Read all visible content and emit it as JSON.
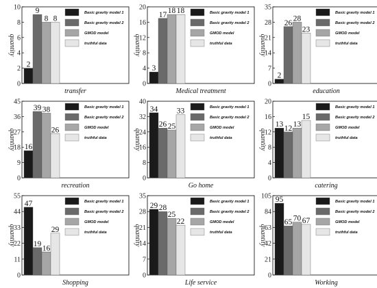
{
  "legend": [
    "Basic gravity model 1",
    "Basic gravity model 2",
    "GMOD model",
    "truthful data"
  ],
  "colors": [
    "#1a1a1a",
    "#6a6a6a",
    "#a6a6a6",
    "#e6e6e6"
  ],
  "chart_data": [
    {
      "type": "bar",
      "title": "transfer",
      "ylabel": "quantity",
      "ylim": [
        0,
        10
      ],
      "yticks": [
        0,
        2,
        4,
        6,
        8,
        10
      ],
      "values": [
        2,
        9,
        8,
        8
      ]
    },
    {
      "type": "bar",
      "title": "Medical treatment",
      "ylabel": "quantity",
      "ylim": [
        0,
        20
      ],
      "yticks": [
        0,
        4,
        8,
        12,
        16,
        20
      ],
      "values": [
        3,
        17,
        18,
        18
      ]
    },
    {
      "type": "bar",
      "title": "education",
      "ylabel": "quantity",
      "ylim": [
        0,
        35
      ],
      "yticks": [
        0,
        7,
        14,
        21,
        28,
        35
      ],
      "values": [
        2,
        26,
        28,
        23
      ]
    },
    {
      "type": "bar",
      "title": "recreation",
      "ylabel": "quantity",
      "ylim": [
        0,
        45
      ],
      "yticks": [
        0,
        9,
        18,
        27,
        36,
        45
      ],
      "values": [
        16,
        39,
        38,
        26
      ]
    },
    {
      "type": "bar",
      "title": "Go home",
      "ylabel": "quantity",
      "ylim": [
        0,
        40
      ],
      "yticks": [
        0,
        8,
        16,
        24,
        32,
        40
      ],
      "values": [
        34,
        26,
        25,
        33
      ]
    },
    {
      "type": "bar",
      "title": "catering",
      "ylabel": "quantity",
      "ylim": [
        0,
        20
      ],
      "yticks": [
        0,
        4,
        8,
        12,
        16,
        20
      ],
      "values": [
        13,
        12,
        13,
        15
      ]
    },
    {
      "type": "bar",
      "title": "Shopping",
      "ylabel": "quantity",
      "ylim": [
        0,
        55
      ],
      "yticks": [
        0,
        11,
        22,
        33,
        44,
        55
      ],
      "values": [
        47,
        19,
        16,
        29
      ]
    },
    {
      "type": "bar",
      "title": "Life service",
      "ylabel": "quantity",
      "ylim": [
        0,
        35
      ],
      "yticks": [
        0,
        7,
        14,
        21,
        28,
        35
      ],
      "values": [
        29,
        28,
        25,
        22
      ]
    },
    {
      "type": "bar",
      "title": "Working",
      "ylabel": "quantity",
      "ylim": [
        0,
        105
      ],
      "yticks": [
        0,
        21,
        42,
        63,
        84,
        105
      ],
      "values": [
        95,
        65,
        70,
        67
      ]
    }
  ]
}
